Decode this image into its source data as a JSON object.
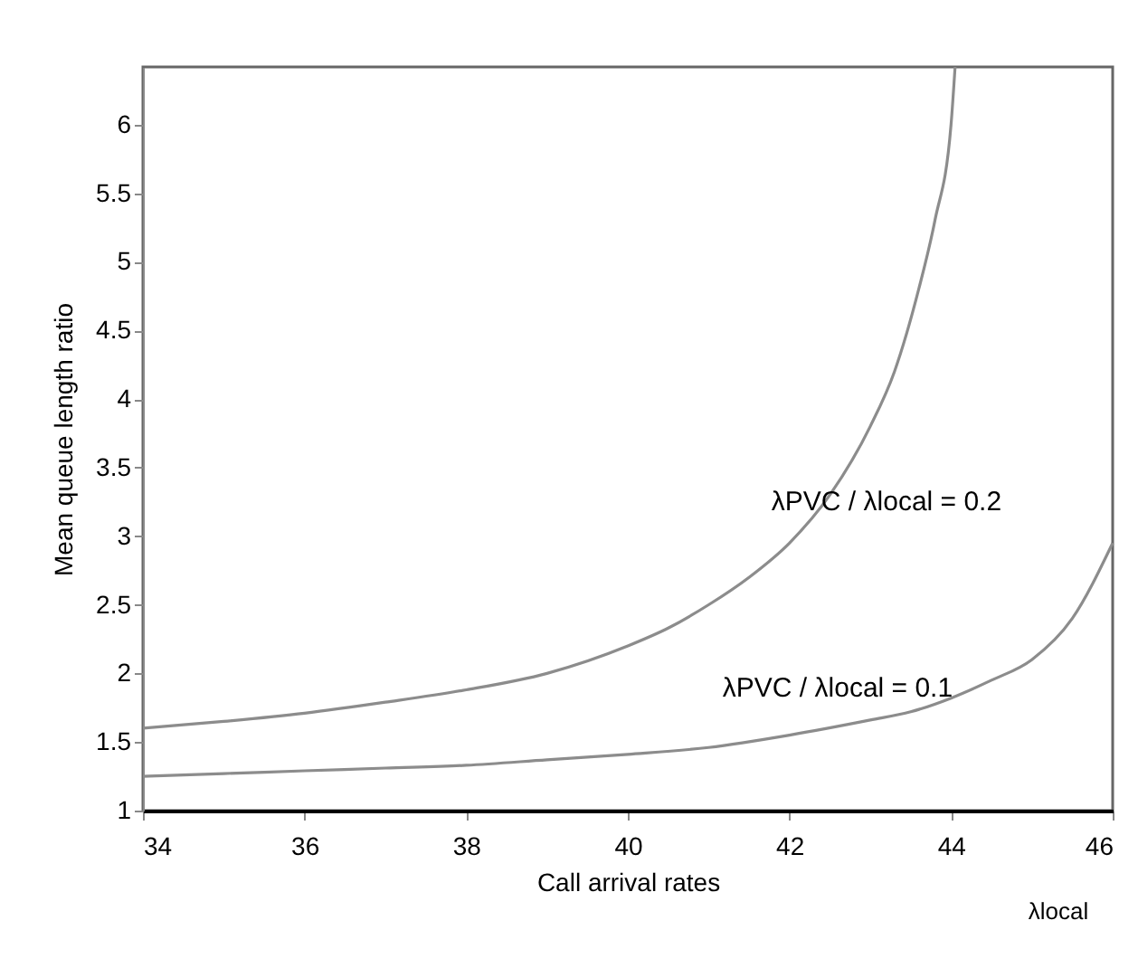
{
  "chart_data": {
    "type": "line",
    "xlabel": "Call arrival rates",
    "ylabel": "Mean queue length ratio",
    "xlim": [
      34,
      46
    ],
    "ylim": [
      1,
      6.42
    ],
    "xticks": [
      34,
      36,
      38,
      40,
      42,
      44,
      46
    ],
    "yticks": [
      1,
      1.5,
      2,
      2.5,
      3,
      3.5,
      4,
      4.5,
      5,
      5.5,
      6
    ],
    "grid": false,
    "marker": "none",
    "line_style": "solid",
    "series": [
      {
        "color": "#8c8c8c",
        "x": [
          34,
          35,
          36,
          37,
          38,
          39,
          40,
          40.5,
          41,
          41.5,
          42,
          42.5,
          43,
          43.3,
          43.6,
          43.8,
          44,
          44.05
        ],
        "values": [
          1.6,
          1.65,
          1.71,
          1.79,
          1.88,
          2.0,
          2.2,
          2.33,
          2.5,
          2.7,
          2.95,
          3.3,
          3.8,
          4.2,
          4.8,
          5.3,
          6.0,
          6.42
        ]
      },
      {
        "color": "#8c8c8c",
        "x": [
          34,
          35,
          36,
          37,
          38,
          39,
          40,
          41,
          42,
          43,
          43.5,
          44,
          44.5,
          45,
          45.5,
          46
        ],
        "values": [
          1.25,
          1.27,
          1.29,
          1.31,
          1.33,
          1.37,
          1.41,
          1.46,
          1.55,
          1.66,
          1.72,
          1.82,
          1.95,
          2.1,
          2.4,
          2.95
        ]
      }
    ],
    "annotations": [
      "λPVC / λlocal = 0.2",
      "λPVC / λlocal = 0.1",
      "λlocal"
    ]
  }
}
